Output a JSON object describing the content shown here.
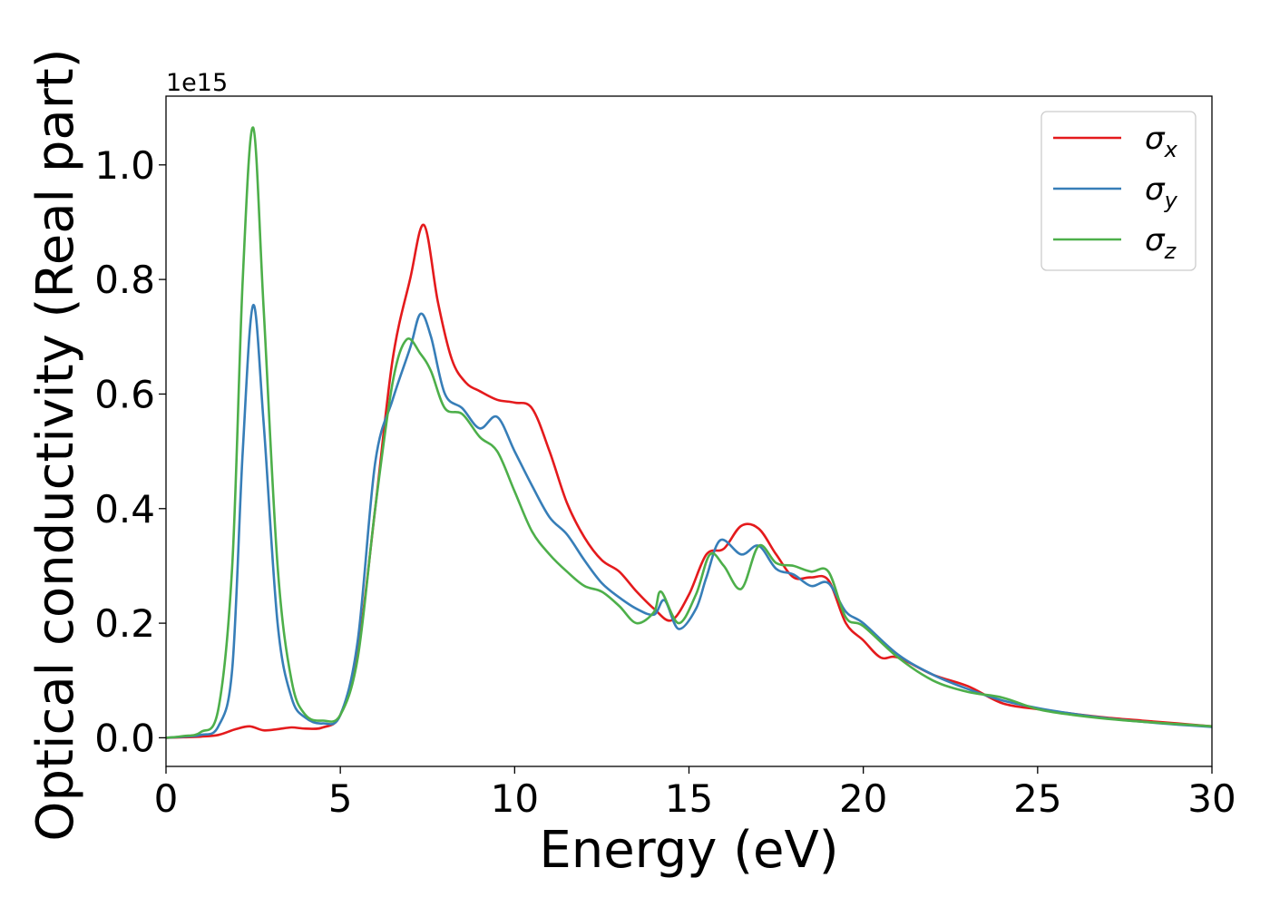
{
  "chart_data": {
    "type": "line",
    "title": "",
    "xlabel": "Energy (eV)",
    "ylabel": "Optical conductivity (Real part)",
    "y_offset_label": "1e15",
    "xlim": [
      0,
      30
    ],
    "ylim": [
      -0.05,
      1.12
    ],
    "xticks": [
      0,
      5,
      10,
      15,
      20,
      25,
      30
    ],
    "xtick_labels": [
      "0",
      "5",
      "10",
      "15",
      "20",
      "25",
      "30"
    ],
    "yticks": [
      0.0,
      0.2,
      0.4,
      0.6,
      0.8,
      1.0
    ],
    "ytick_labels": [
      "0.0",
      "0.2",
      "0.4",
      "0.6",
      "0.8",
      "1.0"
    ],
    "grid": false,
    "legend_position": "top-right",
    "series": [
      {
        "name": "σx",
        "legend_main": "σ",
        "legend_sub": "x",
        "color": "#e41a1c",
        "points": [
          [
            0,
            0
          ],
          [
            0.5,
            0.001
          ],
          [
            1,
            0.002
          ],
          [
            1.5,
            0.005
          ],
          [
            2,
            0.015
          ],
          [
            2.4,
            0.02
          ],
          [
            2.8,
            0.013
          ],
          [
            3.2,
            0.015
          ],
          [
            3.6,
            0.018
          ],
          [
            4,
            0.016
          ],
          [
            4.5,
            0.018
          ],
          [
            5,
            0.04
          ],
          [
            5.5,
            0.15
          ],
          [
            6,
            0.4
          ],
          [
            6.5,
            0.66
          ],
          [
            7,
            0.8
          ],
          [
            7.4,
            0.895
          ],
          [
            7.8,
            0.76
          ],
          [
            8.2,
            0.66
          ],
          [
            8.6,
            0.62
          ],
          [
            9,
            0.605
          ],
          [
            9.5,
            0.59
          ],
          [
            10,
            0.585
          ],
          [
            10.5,
            0.575
          ],
          [
            11,
            0.5
          ],
          [
            11.5,
            0.41
          ],
          [
            12,
            0.35
          ],
          [
            12.5,
            0.31
          ],
          [
            13,
            0.29
          ],
          [
            13.5,
            0.255
          ],
          [
            14,
            0.225
          ],
          [
            14.5,
            0.205
          ],
          [
            15,
            0.25
          ],
          [
            15.5,
            0.32
          ],
          [
            16,
            0.33
          ],
          [
            16.5,
            0.37
          ],
          [
            17,
            0.365
          ],
          [
            17.5,
            0.32
          ],
          [
            18,
            0.28
          ],
          [
            18.5,
            0.28
          ],
          [
            19,
            0.275
          ],
          [
            19.5,
            0.2
          ],
          [
            20,
            0.17
          ],
          [
            20.5,
            0.14
          ],
          [
            21,
            0.14
          ],
          [
            22,
            0.11
          ],
          [
            23,
            0.09
          ],
          [
            24,
            0.06
          ],
          [
            25,
            0.05
          ],
          [
            26,
            0.042
          ],
          [
            27,
            0.035
          ],
          [
            28,
            0.03
          ],
          [
            29,
            0.025
          ],
          [
            30,
            0.02
          ]
        ]
      },
      {
        "name": "σy",
        "legend_main": "σ",
        "legend_sub": "y",
        "color": "#377eb8",
        "points": [
          [
            0,
            0
          ],
          [
            0.5,
            0.002
          ],
          [
            1,
            0.005
          ],
          [
            1.5,
            0.02
          ],
          [
            1.9,
            0.12
          ],
          [
            2.2,
            0.5
          ],
          [
            2.5,
            0.755
          ],
          [
            2.8,
            0.55
          ],
          [
            3.2,
            0.2
          ],
          [
            3.6,
            0.07
          ],
          [
            4,
            0.035
          ],
          [
            4.5,
            0.025
          ],
          [
            5,
            0.04
          ],
          [
            5.5,
            0.17
          ],
          [
            6,
            0.48
          ],
          [
            6.5,
            0.59
          ],
          [
            7,
            0.68
          ],
          [
            7.3,
            0.74
          ],
          [
            7.6,
            0.7
          ],
          [
            8,
            0.6
          ],
          [
            8.5,
            0.575
          ],
          [
            9,
            0.54
          ],
          [
            9.5,
            0.56
          ],
          [
            10,
            0.5
          ],
          [
            10.5,
            0.44
          ],
          [
            11,
            0.385
          ],
          [
            11.5,
            0.355
          ],
          [
            12,
            0.31
          ],
          [
            12.5,
            0.27
          ],
          [
            13,
            0.245
          ],
          [
            13.5,
            0.225
          ],
          [
            14,
            0.215
          ],
          [
            14.3,
            0.24
          ],
          [
            14.7,
            0.19
          ],
          [
            15.2,
            0.225
          ],
          [
            15.5,
            0.28
          ],
          [
            15.9,
            0.345
          ],
          [
            16.5,
            0.32
          ],
          [
            17,
            0.335
          ],
          [
            17.5,
            0.295
          ],
          [
            18,
            0.285
          ],
          [
            18.5,
            0.265
          ],
          [
            19,
            0.27
          ],
          [
            19.5,
            0.22
          ],
          [
            20,
            0.2
          ],
          [
            21,
            0.145
          ],
          [
            22,
            0.11
          ],
          [
            23,
            0.085
          ],
          [
            24,
            0.065
          ],
          [
            25,
            0.052
          ],
          [
            26,
            0.042
          ],
          [
            27,
            0.034
          ],
          [
            28,
            0.028
          ],
          [
            29,
            0.023
          ],
          [
            30,
            0.019
          ]
        ]
      },
      {
        "name": "σz",
        "legend_main": "σ",
        "legend_sub": "z",
        "color": "#4daf4a",
        "points": [
          [
            0,
            0
          ],
          [
            0.5,
            0.003
          ],
          [
            1,
            0.01
          ],
          [
            1.5,
            0.05
          ],
          [
            1.9,
            0.3
          ],
          [
            2.2,
            0.8
          ],
          [
            2.5,
            1.065
          ],
          [
            2.8,
            0.75
          ],
          [
            3.2,
            0.3
          ],
          [
            3.6,
            0.1
          ],
          [
            4,
            0.04
          ],
          [
            4.5,
            0.03
          ],
          [
            5,
            0.04
          ],
          [
            5.5,
            0.14
          ],
          [
            6,
            0.4
          ],
          [
            6.5,
            0.62
          ],
          [
            6.9,
            0.695
          ],
          [
            7.3,
            0.67
          ],
          [
            7.6,
            0.64
          ],
          [
            8,
            0.575
          ],
          [
            8.5,
            0.565
          ],
          [
            9,
            0.525
          ],
          [
            9.5,
            0.5
          ],
          [
            10,
            0.43
          ],
          [
            10.5,
            0.36
          ],
          [
            11,
            0.32
          ],
          [
            11.5,
            0.29
          ],
          [
            12,
            0.265
          ],
          [
            12.5,
            0.255
          ],
          [
            13,
            0.23
          ],
          [
            13.5,
            0.2
          ],
          [
            14,
            0.22
          ],
          [
            14.2,
            0.255
          ],
          [
            14.7,
            0.2
          ],
          [
            15.2,
            0.25
          ],
          [
            15.6,
            0.32
          ],
          [
            16,
            0.3
          ],
          [
            16.5,
            0.26
          ],
          [
            17,
            0.335
          ],
          [
            17.5,
            0.305
          ],
          [
            18,
            0.3
          ],
          [
            18.5,
            0.29
          ],
          [
            19,
            0.29
          ],
          [
            19.5,
            0.21
          ],
          [
            20,
            0.195
          ],
          [
            21,
            0.14
          ],
          [
            22,
            0.1
          ],
          [
            23,
            0.08
          ],
          [
            24,
            0.07
          ],
          [
            25,
            0.05
          ],
          [
            26,
            0.04
          ],
          [
            27,
            0.033
          ],
          [
            28,
            0.028
          ],
          [
            29,
            0.024
          ],
          [
            30,
            0.02
          ]
        ]
      }
    ]
  }
}
